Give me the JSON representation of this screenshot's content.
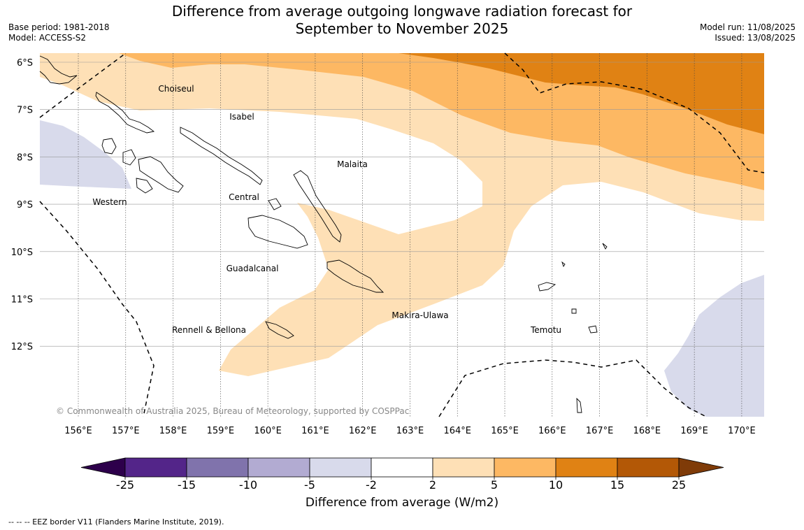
{
  "title": {
    "line1": "Difference from average outgoing longwave radiation forecast for",
    "line2": "September to November 2025"
  },
  "meta_left": {
    "base_period": "Base period: 1981-2018",
    "model": "Model: ACCESS-S2"
  },
  "meta_right": {
    "model_run": "Model run: 11/08/2025",
    "issued": "Issued: 13/08/2025"
  },
  "map": {
    "lon_ticks": [
      "156°E",
      "157°E",
      "158°E",
      "159°E",
      "160°E",
      "161°E",
      "162°E",
      "163°E",
      "164°E",
      "165°E",
      "166°E",
      "167°E",
      "168°E",
      "169°E",
      "170°E"
    ],
    "lat_ticks": [
      "6°S",
      "7°S",
      "8°S",
      "9°S",
      "10°S",
      "11°S",
      "12°S"
    ],
    "provinces": [
      "Choiseul",
      "Isabel",
      "Malaita",
      "Western",
      "Central",
      "Guadalcanal",
      "Makira-Ulawa",
      "Rennell & Bellona",
      "Temotu"
    ],
    "copyright": "© Commonwealth of Australia 2025, Bureau of Meteorology, supported by COSPPac"
  },
  "colorbar": {
    "ticks": [
      "-25",
      "-15",
      "-10",
      "-5",
      "-2",
      "2",
      "5",
      "10",
      "15",
      "25"
    ],
    "colors": [
      "#532589",
      "#8073ac",
      "#b2abd2",
      "#d8daeb",
      "#ffffff",
      "#fee0b6",
      "#fdb863",
      "#e08214",
      "#b35806"
    ],
    "extend_low_color": "#2d004b",
    "extend_high_color": "#7f3b08",
    "label": "Difference from average (W/m2)"
  },
  "legend_note": "--  --  -- EEZ border V11 (Flanders Marine Institute, 2019)."
}
